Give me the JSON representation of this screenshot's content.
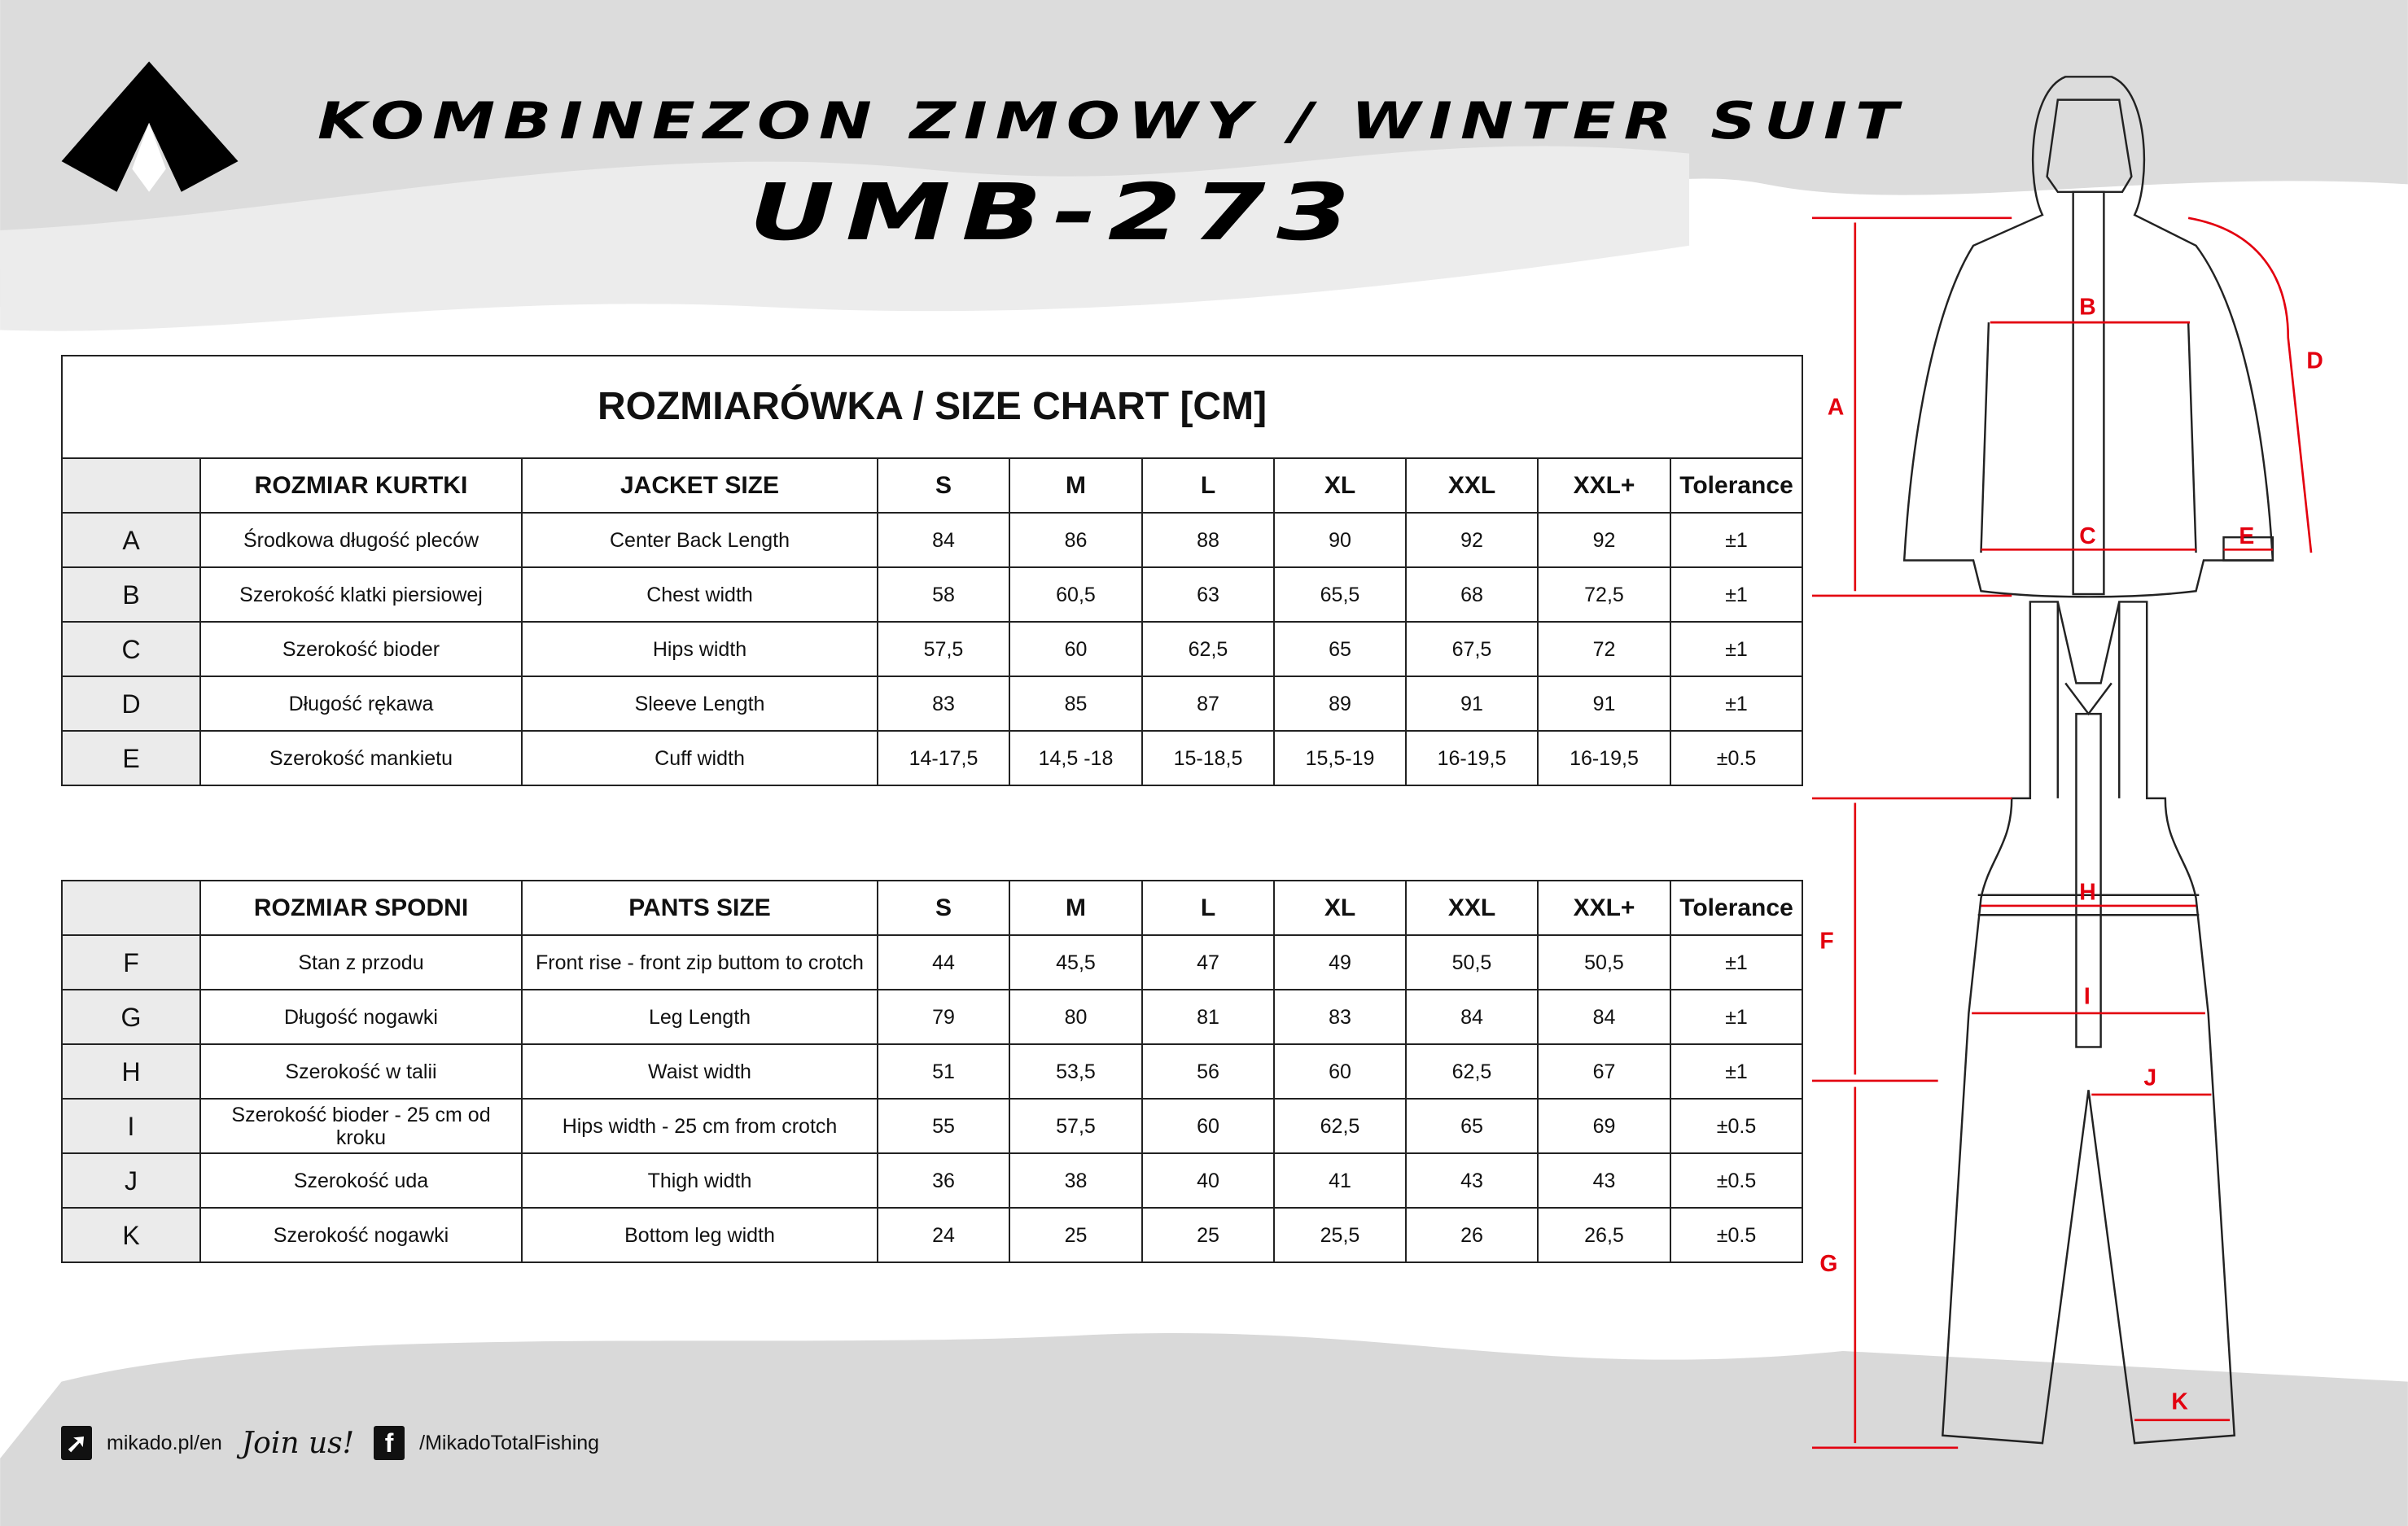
{
  "header": {
    "title": "KOMBINEZON ZIMOWY / WINTER SUIT",
    "model": "UMB-273",
    "logo": "Mikado"
  },
  "jacket_table": {
    "title": "ROZMIARÓWKA / SIZE CHART [CM]",
    "columns": [
      "",
      "ROZMIAR KURTKI",
      "JACKET SIZE",
      "S",
      "M",
      "L",
      "XL",
      "XXL",
      "XXL+",
      "Tolerance"
    ],
    "rows": [
      [
        "A",
        "Środkowa długość pleców",
        "Center Back Length",
        "84",
        "86",
        "88",
        "90",
        "92",
        "92",
        "±1"
      ],
      [
        "B",
        "Szerokość klatki piersiowej",
        "Chest width",
        "58",
        "60,5",
        "63",
        "65,5",
        "68",
        "72,5",
        "±1"
      ],
      [
        "C",
        "Szerokość bioder",
        "Hips width",
        "57,5",
        "60",
        "62,5",
        "65",
        "67,5",
        "72",
        "±1"
      ],
      [
        "D",
        "Długość rękawa",
        "Sleeve Length",
        "83",
        "85",
        "87",
        "89",
        "91",
        "91",
        "±1"
      ],
      [
        "E",
        "Szerokość mankietu",
        "Cuff width",
        "14-17,5",
        "14,5 -18",
        "15-18,5",
        "15,5-19",
        "16-19,5",
        "16-19,5",
        "±0.5"
      ]
    ]
  },
  "pants_table": {
    "columns": [
      "",
      "ROZMIAR SPODNI",
      "PANTS SIZE",
      "S",
      "M",
      "L",
      "XL",
      "XXL",
      "XXL+",
      "Tolerance"
    ],
    "rows": [
      [
        "F",
        "Stan z przodu",
        "Front rise - front zip buttom to crotch",
        "44",
        "45,5",
        "47",
        "49",
        "50,5",
        "50,5",
        "±1"
      ],
      [
        "G",
        "Długość nogawki",
        "Leg Length",
        "79",
        "80",
        "81",
        "83",
        "84",
        "84",
        "±1"
      ],
      [
        "H",
        "Szerokość w talii",
        "Waist width",
        "51",
        "53,5",
        "56",
        "60",
        "62,5",
        "67",
        "±1"
      ],
      [
        "I",
        "Szerokość bioder - 25 cm od kroku",
        "Hips width - 25 cm from crotch",
        "55",
        "57,5",
        "60",
        "62,5",
        "65",
        "69",
        "±0.5"
      ],
      [
        "J",
        "Szerokość uda",
        "Thigh width",
        "36",
        "38",
        "40",
        "41",
        "43",
        "43",
        "±0.5"
      ],
      [
        "K",
        "Szerokość nogawki",
        "Bottom leg width",
        "24",
        "25",
        "25",
        "25,5",
        "26",
        "26,5",
        "±0.5"
      ]
    ]
  },
  "diagram": {
    "labels": [
      "A",
      "B",
      "C",
      "D",
      "E",
      "F",
      "G",
      "H",
      "I",
      "J",
      "K"
    ],
    "accent_color": "#e3000f"
  },
  "footer": {
    "website": "mikado.pl/en",
    "join": "Join us!",
    "facebook": "/MikadoTotalFishing",
    "icons": [
      "cursor-icon",
      "facebook-icon"
    ]
  }
}
